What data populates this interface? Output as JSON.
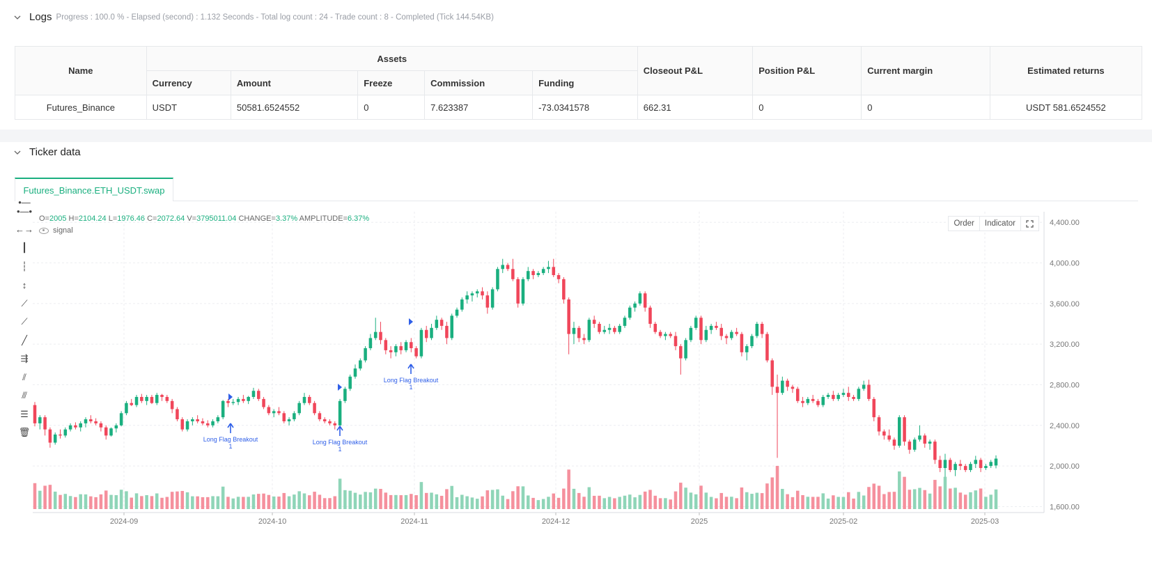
{
  "logs": {
    "title": "Logs",
    "status": "Progress : 100.0 % - Elapsed (second) : 1.132  Seconds - Total log count : 24 - Trade count : 8 - Completed (Tick 144.54KB)"
  },
  "assets_table": {
    "headers": {
      "name": "Name",
      "assets": "Assets",
      "currency": "Currency",
      "amount": "Amount",
      "freeze": "Freeze",
      "commission": "Commission",
      "funding": "Funding",
      "closeout": "Closeout P&L",
      "position": "Position P&L",
      "margin": "Current margin",
      "returns": "Estimated returns"
    },
    "row": {
      "name": "Futures_Binance",
      "currency": "USDT",
      "amount": "50581.6524552",
      "freeze": "0",
      "commission": "7.623387",
      "funding": "-73.0341578",
      "closeout": "662.31",
      "position": "0",
      "margin": "0",
      "returns": "USDT 581.6524552"
    }
  },
  "ticker": {
    "title": "Ticker data",
    "tab": "Futures_Binance.ETH_USDT.swap",
    "ohlc": {
      "o_label": "O=",
      "o": "2005",
      "h_label": "H=",
      "h": "2104.24",
      "l_label": "L=",
      "l": "1976.46",
      "c_label": "C=",
      "c": "2072.64",
      "v_label": "V=",
      "v": "3795011.04",
      "change_label": "CHANGE=",
      "change": "3.37%",
      "amp_label": "AMPLITUDE=",
      "amp": "6.37%"
    },
    "signal_label": "signal",
    "controls": {
      "order": "Order",
      "indicator": "Indicator"
    },
    "tools": [
      "horizontal-ray-icon",
      "horizontal-segment-icon",
      "horizontal-line-icon",
      "vertical-ray-icon",
      "vertical-segment-icon",
      "vertical-line-icon",
      "trend-ray-icon",
      "trend-segment-icon",
      "trend-line-icon",
      "price-label-icon",
      "parallel-channel-icon",
      "fibonacci-icon",
      "grid-lines-icon",
      "trash-icon"
    ]
  },
  "colors": {
    "up": "#1aaf7f",
    "down": "#f0465a",
    "up_vol": "#8fd5b8",
    "down_vol": "#f5909d",
    "signal": "#2f5fe8",
    "accent": "#1aaf7f"
  },
  "chart_data": {
    "type": "candlestick",
    "symbol": "Futures_Binance.ETH_USDT.swap",
    "x_ticks": [
      "2024-09",
      "2024-10",
      "2024-11",
      "2024-12",
      "2025",
      "2025-02",
      "2025-03"
    ],
    "y_ticks": [
      "4,400.00",
      "4,000.00",
      "3,600.00",
      "3,200.00",
      "2,800.00",
      "2,400.00",
      "2,000.00",
      "1,600.00"
    ],
    "ylim": [
      1550,
      4480
    ],
    "grid": true,
    "annotations": [
      {
        "text": "Long Flag Breakout",
        "sub": "1",
        "date": "2024-09-26",
        "price": 2390
      },
      {
        "text": "Long Flag Breakout",
        "sub": "1",
        "date": "2024-10-19",
        "price": 2330
      },
      {
        "text": "Long Flag Breakout",
        "sub": "1",
        "date": "2024-10-31",
        "price": 2940
      }
    ],
    "candles_ohlc_approx": [
      [
        2600,
        2630,
        2390,
        2420
      ],
      [
        2420,
        2500,
        2360,
        2480
      ],
      [
        2480,
        2500,
        2300,
        2360
      ],
      [
        2360,
        2380,
        2180,
        2230
      ],
      [
        2230,
        2330,
        2210,
        2310
      ],
      [
        2310,
        2360,
        2270,
        2300
      ],
      [
        2300,
        2380,
        2280,
        2360
      ],
      [
        2360,
        2420,
        2340,
        2400
      ],
      [
        2400,
        2430,
        2360,
        2380
      ],
      [
        2380,
        2440,
        2340,
        2420
      ],
      [
        2420,
        2480,
        2380,
        2460
      ],
      [
        2460,
        2500,
        2420,
        2440
      ],
      [
        2440,
        2470,
        2400,
        2420
      ],
      [
        2420,
        2440,
        2340,
        2380
      ],
      [
        2380,
        2400,
        2260,
        2300
      ],
      [
        2300,
        2380,
        2290,
        2370
      ],
      [
        2370,
        2420,
        2330,
        2400
      ],
      [
        2400,
        2540,
        2390,
        2520
      ],
      [
        2520,
        2640,
        2500,
        2620
      ],
      [
        2620,
        2660,
        2590,
        2600
      ],
      [
        2600,
        2700,
        2580,
        2680
      ],
      [
        2680,
        2710,
        2620,
        2640
      ],
      [
        2640,
        2700,
        2600,
        2680
      ],
      [
        2680,
        2700,
        2610,
        2620
      ],
      [
        2620,
        2720,
        2600,
        2700
      ],
      [
        2700,
        2710,
        2640,
        2680
      ],
      [
        2680,
        2700,
        2620,
        2640
      ],
      [
        2640,
        2660,
        2520,
        2560
      ],
      [
        2560,
        2580,
        2440,
        2460
      ],
      [
        2460,
        2480,
        2340,
        2360
      ],
      [
        2360,
        2460,
        2340,
        2440
      ],
      [
        2440,
        2480,
        2400,
        2460
      ],
      [
        2460,
        2500,
        2420,
        2440
      ],
      [
        2440,
        2470,
        2400,
        2420
      ],
      [
        2420,
        2450,
        2380,
        2400
      ],
      [
        2400,
        2460,
        2380,
        2440
      ],
      [
        2440,
        2500,
        2420,
        2480
      ],
      [
        2480,
        2650,
        2460,
        2640
      ],
      [
        2640,
        2660,
        2580,
        2620
      ],
      [
        2620,
        2660,
        2600,
        2630
      ],
      [
        2630,
        2680,
        2600,
        2660
      ],
      [
        2660,
        2700,
        2620,
        2640
      ],
      [
        2640,
        2690,
        2610,
        2680
      ],
      [
        2680,
        2770,
        2660,
        2740
      ],
      [
        2740,
        2760,
        2640,
        2660
      ],
      [
        2660,
        2680,
        2560,
        2580
      ],
      [
        2580,
        2600,
        2500,
        2520
      ],
      [
        2520,
        2560,
        2480,
        2540
      ],
      [
        2540,
        2580,
        2500,
        2520
      ],
      [
        2520,
        2540,
        2420,
        2440
      ],
      [
        2440,
        2480,
        2400,
        2460
      ],
      [
        2460,
        2540,
        2440,
        2520
      ],
      [
        2520,
        2640,
        2500,
        2620
      ],
      [
        2620,
        2720,
        2600,
        2680
      ],
      [
        2680,
        2700,
        2600,
        2620
      ],
      [
        2620,
        2640,
        2500,
        2520
      ],
      [
        2520,
        2540,
        2440,
        2460
      ],
      [
        2460,
        2480,
        2420,
        2440
      ],
      [
        2440,
        2460,
        2400,
        2420
      ],
      [
        2420,
        2440,
        2360,
        2400
      ],
      [
        2400,
        2660,
        2390,
        2640
      ],
      [
        2640,
        2780,
        2620,
        2760
      ],
      [
        2760,
        2900,
        2740,
        2880
      ],
      [
        2880,
        3000,
        2860,
        2960
      ],
      [
        2960,
        3060,
        2940,
        3040
      ],
      [
        3040,
        3180,
        3020,
        3160
      ],
      [
        3160,
        3300,
        3140,
        3260
      ],
      [
        3260,
        3460,
        3240,
        3320
      ],
      [
        3320,
        3420,
        3200,
        3240
      ],
      [
        3240,
        3260,
        3100,
        3140
      ],
      [
        3140,
        3180,
        3060,
        3120
      ],
      [
        3120,
        3200,
        3080,
        3180
      ],
      [
        3180,
        3220,
        3100,
        3140
      ],
      [
        3140,
        3240,
        3120,
        3220
      ],
      [
        3220,
        3260,
        3120,
        3160
      ],
      [
        3160,
        3180,
        3060,
        3080
      ],
      [
        3080,
        3360,
        3060,
        3340
      ],
      [
        3340,
        3380,
        3220,
        3260
      ],
      [
        3260,
        3400,
        3240,
        3360
      ],
      [
        3360,
        3480,
        3340,
        3440
      ],
      [
        3440,
        3460,
        3340,
        3380
      ],
      [
        3380,
        3420,
        3200,
        3260
      ],
      [
        3260,
        3500,
        3240,
        3480
      ],
      [
        3480,
        3560,
        3460,
        3540
      ],
      [
        3540,
        3660,
        3520,
        3640
      ],
      [
        3640,
        3720,
        3600,
        3680
      ],
      [
        3680,
        3720,
        3620,
        3700
      ],
      [
        3700,
        3740,
        3660,
        3720
      ],
      [
        3720,
        3760,
        3640,
        3680
      ],
      [
        3680,
        3720,
        3500,
        3560
      ],
      [
        3560,
        3760,
        3540,
        3740
      ],
      [
        3740,
        3960,
        3720,
        3940
      ],
      [
        3940,
        4040,
        3900,
        3980
      ],
      [
        3980,
        4000,
        3920,
        3940
      ],
      [
        3940,
        4040,
        3820,
        3840
      ],
      [
        3840,
        3860,
        3560,
        3600
      ],
      [
        3600,
        3860,
        3580,
        3840
      ],
      [
        3840,
        3960,
        3820,
        3920
      ],
      [
        3920,
        3940,
        3840,
        3880
      ],
      [
        3880,
        3920,
        3860,
        3900
      ],
      [
        3900,
        3960,
        3880,
        3940
      ],
      [
        3940,
        4020,
        3900,
        3960
      ],
      [
        3960,
        4040,
        3860,
        3880
      ],
      [
        3880,
        3900,
        3800,
        3840
      ],
      [
        3840,
        3860,
        3600,
        3640
      ],
      [
        3640,
        3660,
        3100,
        3300
      ],
      [
        3300,
        3420,
        3200,
        3360
      ],
      [
        3360,
        3380,
        3220,
        3260
      ],
      [
        3260,
        3300,
        3200,
        3240
      ],
      [
        3240,
        3460,
        3220,
        3440
      ],
      [
        3440,
        3480,
        3360,
        3400
      ],
      [
        3400,
        3420,
        3300,
        3320
      ],
      [
        3320,
        3380,
        3300,
        3340
      ],
      [
        3340,
        3400,
        3300,
        3360
      ],
      [
        3360,
        3380,
        3300,
        3320
      ],
      [
        3320,
        3400,
        3300,
        3380
      ],
      [
        3380,
        3480,
        3360,
        3460
      ],
      [
        3460,
        3580,
        3440,
        3560
      ],
      [
        3560,
        3620,
        3520,
        3600
      ],
      [
        3600,
        3720,
        3580,
        3700
      ],
      [
        3700,
        3720,
        3520,
        3560
      ],
      [
        3560,
        3580,
        3360,
        3400
      ],
      [
        3400,
        3420,
        3300,
        3320
      ],
      [
        3320,
        3340,
        3260,
        3280
      ],
      [
        3280,
        3320,
        3240,
        3300
      ],
      [
        3300,
        3320,
        3260,
        3280
      ],
      [
        3280,
        3320,
        3140,
        3180
      ],
      [
        3180,
        3200,
        2900,
        3060
      ],
      [
        3060,
        3260,
        3040,
        3240
      ],
      [
        3240,
        3380,
        3220,
        3360
      ],
      [
        3360,
        3480,
        3340,
        3460
      ],
      [
        3460,
        3480,
        3200,
        3240
      ],
      [
        3240,
        3380,
        3220,
        3340
      ],
      [
        3340,
        3400,
        3300,
        3380
      ],
      [
        3380,
        3420,
        3340,
        3360
      ],
      [
        3360,
        3400,
        3240,
        3280
      ],
      [
        3280,
        3300,
        3200,
        3260
      ],
      [
        3260,
        3340,
        3240,
        3320
      ],
      [
        3320,
        3360,
        3280,
        3300
      ],
      [
        3300,
        3320,
        3080,
        3120
      ],
      [
        3120,
        3200,
        3040,
        3180
      ],
      [
        3180,
        3300,
        3160,
        3280
      ],
      [
        3280,
        3420,
        3260,
        3400
      ],
      [
        3400,
        3420,
        3260,
        3300
      ],
      [
        3300,
        3320,
        3020,
        3040
      ],
      [
        3040,
        3060,
        2700,
        2780
      ],
      [
        2780,
        2900,
        2080,
        2720
      ],
      [
        2720,
        2880,
        2700,
        2840
      ],
      [
        2840,
        2860,
        2740,
        2780
      ],
      [
        2780,
        2800,
        2720,
        2760
      ],
      [
        2760,
        2780,
        2620,
        2640
      ],
      [
        2640,
        2680,
        2580,
        2620
      ],
      [
        2620,
        2680,
        2600,
        2660
      ],
      [
        2660,
        2700,
        2620,
        2640
      ],
      [
        2640,
        2660,
        2580,
        2600
      ],
      [
        2600,
        2700,
        2580,
        2680
      ],
      [
        2680,
        2720,
        2660,
        2700
      ],
      [
        2700,
        2740,
        2640,
        2660
      ],
      [
        2660,
        2720,
        2640,
        2700
      ],
      [
        2700,
        2760,
        2680,
        2720
      ],
      [
        2720,
        2780,
        2640,
        2680
      ],
      [
        2680,
        2700,
        2640,
        2660
      ],
      [
        2660,
        2780,
        2640,
        2760
      ],
      [
        2760,
        2840,
        2740,
        2800
      ],
      [
        2800,
        2850,
        2640,
        2660
      ],
      [
        2660,
        2680,
        2440,
        2480
      ],
      [
        2480,
        2500,
        2300,
        2340
      ],
      [
        2340,
        2360,
        2260,
        2300
      ],
      [
        2300,
        2360,
        2240,
        2260
      ],
      [
        2260,
        2280,
        2160,
        2200
      ],
      [
        2200,
        2500,
        2180,
        2480
      ],
      [
        2480,
        2500,
        2200,
        2240
      ],
      [
        2240,
        2260,
        2120,
        2160
      ],
      [
        2160,
        2280,
        2140,
        2260
      ],
      [
        2260,
        2400,
        2240,
        2300
      ],
      [
        2300,
        2320,
        2180,
        2220
      ],
      [
        2220,
        2260,
        2160,
        2240
      ],
      [
        2240,
        2260,
        2020,
        2060
      ],
      [
        2060,
        2100,
        1940,
        1980
      ],
      [
        1980,
        2120,
        1880,
        2060
      ],
      [
        2060,
        2080,
        1940,
        1960
      ],
      [
        1960,
        2040,
        1900,
        2020
      ],
      [
        2020,
        2060,
        1960,
        2000
      ],
      [
        2000,
        2020,
        1940,
        1960
      ],
      [
        1960,
        2040,
        1940,
        2020
      ],
      [
        2020,
        2100,
        1980,
        2060
      ],
      [
        2060,
        2080,
        1940,
        1980
      ],
      [
        1980,
        2020,
        1960,
        2000
      ],
      [
        2000,
        2060,
        1980,
        2040
      ],
      [
        2005,
        2104.24,
        1976.46,
        2072.64
      ]
    ]
  }
}
